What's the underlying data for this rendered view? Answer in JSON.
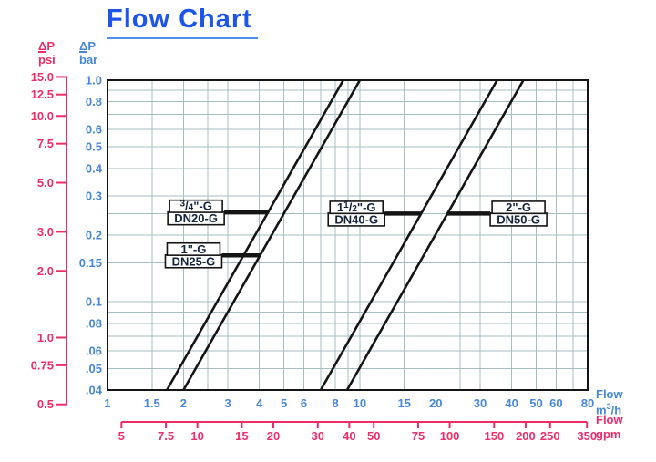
{
  "title": "Flow Chart",
  "colors": {
    "title_blue": "#1d55e8",
    "title_underline_blue": "#4a90e8",
    "axis_blue": "#4687d8",
    "pink": "#ee2d68",
    "grid": "#a7bdc0",
    "line_black": "#141414",
    "box_text": "#14233b",
    "background": "#ffffff"
  },
  "chart_data": {
    "type": "line",
    "title": "Flow Chart",
    "description": "Log-log pressure-drop vs flow curves for four G-thread valve sizes",
    "y_axis_bar": {
      "symbol_delta": "Δ",
      "symbol_p": "P",
      "unit": "bar",
      "scale": "log",
      "range": [
        0.04,
        1.0
      ],
      "ticks": [
        {
          "v": 1.0,
          "label": "1.0"
        },
        {
          "v": 0.8,
          "label": "0.8"
        },
        {
          "v": 0.6,
          "label": "0.6"
        },
        {
          "v": 0.5,
          "label": "0.5"
        },
        {
          "v": 0.4,
          "label": "0.4"
        },
        {
          "v": 0.3,
          "label": "0.3"
        },
        {
          "v": 0.2,
          "label": "0.2"
        },
        {
          "v": 0.15,
          "label": "0.15"
        },
        {
          "v": 0.1,
          "label": "0.1"
        },
        {
          "v": 0.08,
          "label": ".08"
        },
        {
          "v": 0.06,
          "label": ".06"
        },
        {
          "v": 0.05,
          "label": ".05"
        },
        {
          "v": 0.04,
          "label": ".04"
        }
      ]
    },
    "y_axis_psi": {
      "symbol_delta": "Δ",
      "symbol_p": "P",
      "unit": "psi",
      "scale": "log",
      "range": [
        0.5,
        15.0
      ],
      "ticks": [
        {
          "v": 15.0,
          "label": "15.0"
        },
        {
          "v": 12.5,
          "label": "12.5"
        },
        {
          "v": 10.0,
          "label": "10.0"
        },
        {
          "v": 7.5,
          "label": "7.5"
        },
        {
          "v": 5.0,
          "label": "5.0"
        },
        {
          "v": 3.0,
          "label": "3.0"
        },
        {
          "v": 2.0,
          "label": "2.0"
        },
        {
          "v": 1.0,
          "label": "1.0"
        },
        {
          "v": 0.75,
          "label": "0.75"
        },
        {
          "v": 0.5,
          "label": "0.5"
        }
      ]
    },
    "x_axis_m3h": {
      "label": "Flow",
      "unit_base": "m",
      "unit_exp": "3",
      "unit_per": "/h",
      "scale": "log",
      "range": [
        1,
        80
      ],
      "ticks": [
        {
          "v": 1,
          "label": "1"
        },
        {
          "v": 1.5,
          "label": "1.5"
        },
        {
          "v": 2,
          "label": "2"
        },
        {
          "v": 3,
          "label": "3"
        },
        {
          "v": 4,
          "label": "4"
        },
        {
          "v": 5,
          "label": "5"
        },
        {
          "v": 6,
          "label": "6"
        },
        {
          "v": 8,
          "label": "8"
        },
        {
          "v": 10,
          "label": "10"
        },
        {
          "v": 15,
          "label": "15"
        },
        {
          "v": 20,
          "label": "20"
        },
        {
          "v": 30,
          "label": "30"
        },
        {
          "v": 40,
          "label": "40"
        },
        {
          "v": 50,
          "label": "50"
        },
        {
          "v": 60,
          "label": "60"
        },
        {
          "v": 80,
          "label": "80"
        }
      ]
    },
    "x_axis_gpm": {
      "label": "Flow",
      "unit": "gpm",
      "scale": "log",
      "range": [
        5,
        350
      ],
      "ticks": [
        {
          "v": 5,
          "label": "5"
        },
        {
          "v": 7.5,
          "label": "7.5"
        },
        {
          "v": 10,
          "label": "10"
        },
        {
          "v": 15,
          "label": "15"
        },
        {
          "v": 20,
          "label": "20"
        },
        {
          "v": 30,
          "label": "30"
        },
        {
          "v": 40,
          "label": "40"
        },
        {
          "v": 50,
          "label": "50"
        },
        {
          "v": 75,
          "label": "75"
        },
        {
          "v": 100,
          "label": "100"
        },
        {
          "v": 150,
          "label": "150"
        },
        {
          "v": 200,
          "label": "200"
        },
        {
          "v": 250,
          "label": "250"
        },
        {
          "v": 350,
          "label": "350"
        }
      ]
    },
    "grid": {
      "x_values": [
        1.5,
        2,
        2.5,
        3,
        4,
        5,
        6,
        7,
        8,
        9,
        10,
        15,
        20,
        25,
        30,
        40,
        50,
        60,
        70
      ],
      "y_values": [
        0.05,
        0.06,
        0.07,
        0.08,
        0.09,
        0.1,
        0.15,
        0.2,
        0.25,
        0.3,
        0.4,
        0.5,
        0.6,
        0.7,
        0.8,
        0.9
      ]
    },
    "series": [
      {
        "name": "3/4\"-G",
        "dn": "DN20-G",
        "kv_m3h": 8.6,
        "points": [
          [
            1.72,
            0.04
          ],
          [
            8.6,
            1.0
          ]
        ],
        "label_parts": {
          "pre": "",
          "sup": "3",
          "slash": "/",
          "sub": "4",
          "post": "\"-G"
        },
        "label_dp_bar": 0.253
      },
      {
        "name": "1\"-G",
        "dn": "DN25-G",
        "kv_m3h": 10.0,
        "points": [
          [
            2.0,
            0.04
          ],
          [
            10.0,
            1.0
          ]
        ],
        "label_parts": {
          "pre": "1",
          "post": "\"-G"
        },
        "label_dp_bar": 0.162
      },
      {
        "name": "1 1/2\"-G",
        "dn": "DN40-G",
        "kv_m3h": 35.0,
        "points": [
          [
            7.0,
            0.04
          ],
          [
            35.0,
            1.0
          ]
        ],
        "label_parts": {
          "pre": "1",
          "sup": "1",
          "slash": "/",
          "sub": "2",
          "post": "\"-G"
        },
        "label_dp_bar": 0.25
      },
      {
        "name": "2\"-G",
        "dn": "DN50-G",
        "kv_m3h": 44.5,
        "points": [
          [
            8.9,
            0.04
          ],
          [
            44.5,
            1.0
          ]
        ],
        "label_parts": {
          "pre": "2",
          "post": "\"-G"
        },
        "label_dp_bar": 0.25
      }
    ]
  }
}
